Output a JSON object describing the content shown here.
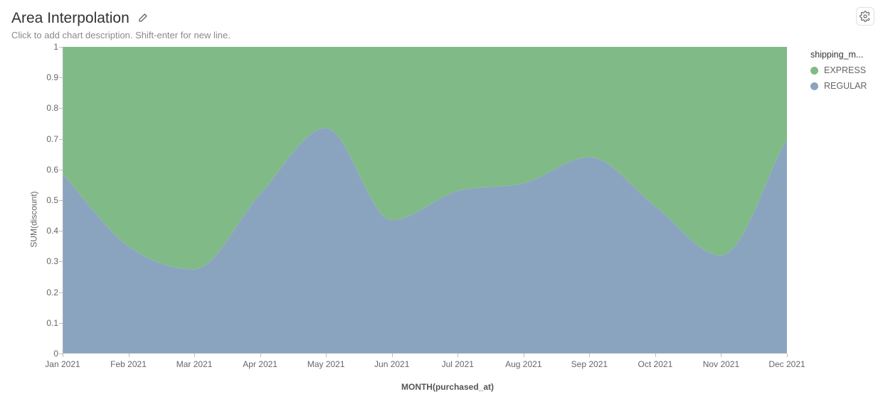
{
  "header": {
    "title": "Area Interpolation",
    "subtitle": "Click to add chart description. Shift-enter for new line."
  },
  "chart": {
    "type": "area",
    "stacked_normalized": true,
    "interpolation": "monotone",
    "background_color": "#ffffff",
    "axis_color": "#bdbdbd",
    "tick_label_color": "#666666",
    "tick_fontsize": 12,
    "x_axis": {
      "title": "MONTH(purchased_at)",
      "categories": [
        "Jan 2021",
        "Feb 2021",
        "Mar 2021",
        "Apr 2021",
        "May 2021",
        "Jun 2021",
        "Jul 2021",
        "Aug 2021",
        "Sep 2021",
        "Oct 2021",
        "Nov 2021",
        "Dec 2021"
      ]
    },
    "y_axis": {
      "title": "SUM(discount)",
      "ylim": [
        0,
        1
      ],
      "ytick_step": 0.1,
      "ticks": [
        0,
        0.1,
        0.2,
        0.3,
        0.4,
        0.5,
        0.6,
        0.7,
        0.8,
        0.9,
        1
      ]
    },
    "series": [
      {
        "name": "REGULAR",
        "color": "#8aa4c0",
        "fill_opacity": 1,
        "boundary_values": [
          0.585,
          0.35,
          0.275,
          0.52,
          0.735,
          0.435,
          0.53,
          0.555,
          0.64,
          0.48,
          0.32,
          0.7
        ]
      },
      {
        "name": "EXPRESS",
        "color": "#80bb87",
        "fill_opacity": 1,
        "boundary_values": [
          1,
          1,
          1,
          1,
          1,
          1,
          1,
          1,
          1,
          1,
          1,
          1
        ]
      }
    ]
  },
  "legend": {
    "title": "shipping_m...",
    "position": "right",
    "items": [
      {
        "label": "EXPRESS",
        "color": "#80bb87"
      },
      {
        "label": "REGULAR",
        "color": "#8aa4c0"
      }
    ]
  }
}
